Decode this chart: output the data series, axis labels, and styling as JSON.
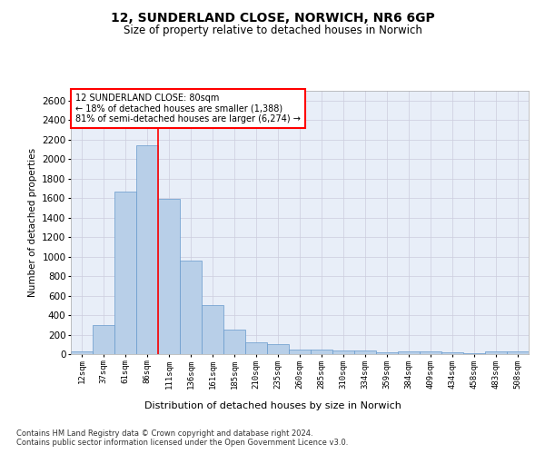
{
  "title1": "12, SUNDERLAND CLOSE, NORWICH, NR6 6GP",
  "title2": "Size of property relative to detached houses in Norwich",
  "xlabel": "Distribution of detached houses by size in Norwich",
  "ylabel": "Number of detached properties",
  "annotation_line1": "12 SUNDERLAND CLOSE: 80sqm",
  "annotation_line2": "← 18% of detached houses are smaller (1,388)",
  "annotation_line3": "81% of semi-detached houses are larger (6,274) →",
  "categories": [
    "12sqm",
    "37sqm",
    "61sqm",
    "86sqm",
    "111sqm",
    "136sqm",
    "161sqm",
    "185sqm",
    "210sqm",
    "235sqm",
    "260sqm",
    "285sqm",
    "310sqm",
    "334sqm",
    "359sqm",
    "384sqm",
    "409sqm",
    "434sqm",
    "458sqm",
    "483sqm",
    "508sqm"
  ],
  "bar_values": [
    25,
    300,
    1670,
    2140,
    1590,
    960,
    500,
    250,
    120,
    100,
    50,
    50,
    35,
    35,
    20,
    30,
    25,
    20,
    10,
    30,
    25
  ],
  "bar_width": 1.0,
  "bar_color": "#b8cfe8",
  "bar_edgecolor": "#6699cc",
  "vline_x": 3.5,
  "vline_color": "red",
  "vline_lw": 1.2,
  "ylim": [
    0,
    2700
  ],
  "yticks": [
    0,
    200,
    400,
    600,
    800,
    1000,
    1200,
    1400,
    1600,
    1800,
    2000,
    2200,
    2400,
    2600
  ],
  "grid_color": "#ccccdd",
  "bg_color": "#e8eef8",
  "annotation_box_color": "white",
  "annotation_box_edgecolor": "red",
  "footer1": "Contains HM Land Registry data © Crown copyright and database right 2024.",
  "footer2": "Contains public sector information licensed under the Open Government Licence v3.0."
}
